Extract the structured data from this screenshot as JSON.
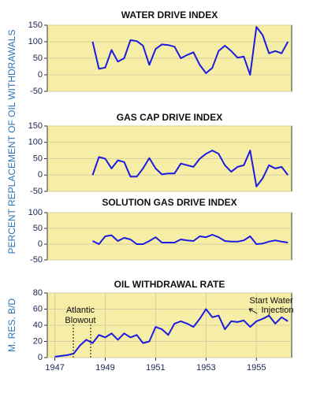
{
  "ylabel": "PERCENT REPLACEMENT OF OIL WITHDRAWALS",
  "chart_data": [
    {
      "type": "line",
      "title": "WATER DRIVE INDEX",
      "color": "#1c1ce0",
      "grid": true,
      "x": [
        1948.5,
        1948.75,
        1949,
        1949.25,
        1949.5,
        1949.75,
        1950,
        1950.25,
        1950.5,
        1950.75,
        1951,
        1951.25,
        1951.5,
        1951.75,
        1952,
        1952.25,
        1952.5,
        1952.75,
        1953,
        1953.25,
        1953.5,
        1953.75,
        1954,
        1954.25,
        1954.5,
        1954.75,
        1955,
        1955.25,
        1955.5,
        1955.75,
        1956,
        1956.25
      ],
      "values": [
        100,
        18,
        22,
        75,
        40,
        50,
        105,
        102,
        88,
        30,
        78,
        92,
        90,
        85,
        50,
        60,
        68,
        30,
        5,
        21,
        72,
        88,
        72,
        52,
        55,
        0,
        145,
        120,
        65,
        72,
        65,
        100
      ],
      "xlim": [
        1946.7,
        1956.4
      ],
      "ylim": [
        -50,
        150
      ],
      "yticks": [
        150,
        100,
        50,
        0,
        -50
      ]
    },
    {
      "type": "line",
      "title": "GAS CAP DRIVE INDEX",
      "color": "#1c1ce0",
      "grid": true,
      "x": [
        1948.5,
        1948.75,
        1949,
        1949.25,
        1949.5,
        1949.75,
        1950,
        1950.25,
        1950.5,
        1950.75,
        1951,
        1951.25,
        1951.5,
        1951.75,
        1952,
        1952.25,
        1952.5,
        1952.75,
        1953,
        1953.25,
        1953.5,
        1953.75,
        1954,
        1954.25,
        1954.5,
        1954.75,
        1955,
        1955.25,
        1955.5,
        1955.75,
        1956,
        1956.25
      ],
      "values": [
        0,
        55,
        50,
        20,
        45,
        40,
        -5,
        -5,
        20,
        52,
        20,
        2,
        5,
        5,
        35,
        30,
        25,
        50,
        65,
        75,
        65,
        30,
        10,
        25,
        30,
        75,
        -35,
        -10,
        30,
        20,
        25,
        0
      ],
      "xlim": [
        1946.7,
        1956.4
      ],
      "ylim": [
        -50,
        150
      ],
      "yticks": [
        150,
        100,
        50,
        0,
        -50
      ]
    },
    {
      "type": "line",
      "title": "SOLUTION GAS DRIVE INDEX",
      "color": "#1c1ce0",
      "grid": true,
      "x": [
        1948.5,
        1948.75,
        1949,
        1949.25,
        1949.5,
        1949.75,
        1950,
        1950.25,
        1950.5,
        1950.75,
        1951,
        1951.25,
        1951.5,
        1951.75,
        1952,
        1952.25,
        1952.5,
        1952.75,
        1953,
        1953.25,
        1953.5,
        1953.75,
        1954,
        1954.25,
        1954.5,
        1954.75,
        1955,
        1955.25,
        1955.5,
        1955.75,
        1956,
        1956.25
      ],
      "values": [
        10,
        0,
        25,
        28,
        10,
        20,
        15,
        0,
        0,
        10,
        22,
        5,
        5,
        5,
        15,
        12,
        10,
        25,
        22,
        30,
        22,
        10,
        8,
        8,
        12,
        25,
        0,
        2,
        8,
        12,
        8,
        5
      ],
      "xlim": [
        1946.7,
        1956.4
      ],
      "ylim": [
        -50,
        100
      ],
      "yticks": [
        100,
        50,
        0,
        -50
      ]
    },
    {
      "type": "line",
      "title": "OIL WITHDRAWAL RATE",
      "ylabel": "M. RES. B/D",
      "color": "#1c1ce0",
      "grid": true,
      "x": [
        1947,
        1947.25,
        1947.5,
        1947.75,
        1948,
        1948.25,
        1948.5,
        1948.75,
        1949,
        1949.25,
        1949.5,
        1949.75,
        1950,
        1950.25,
        1950.5,
        1950.75,
        1951,
        1951.25,
        1951.5,
        1951.75,
        1952,
        1952.25,
        1952.5,
        1952.75,
        1953,
        1953.25,
        1953.5,
        1953.75,
        1954,
        1954.25,
        1954.5,
        1954.75,
        1955,
        1955.25,
        1955.5,
        1955.75,
        1956,
        1956.25
      ],
      "values": [
        1,
        2,
        3,
        5,
        15,
        22,
        18,
        28,
        25,
        30,
        22,
        30,
        25,
        28,
        18,
        20,
        38,
        35,
        28,
        42,
        45,
        42,
        38,
        48,
        60,
        50,
        52,
        35,
        45,
        44,
        46,
        38,
        45,
        48,
        52,
        42,
        50,
        45
      ],
      "xlim": [
        1946.7,
        1956.4
      ],
      "ylim": [
        0,
        80
      ],
      "yticks": [
        80,
        60,
        40,
        20,
        0
      ],
      "xticks": [
        1947,
        1949,
        1951,
        1953,
        1955
      ],
      "annotations": [
        [
          "Atlantic",
          "Blowout"
        ],
        [
          "Start Water",
          "Injection"
        ]
      ]
    }
  ]
}
